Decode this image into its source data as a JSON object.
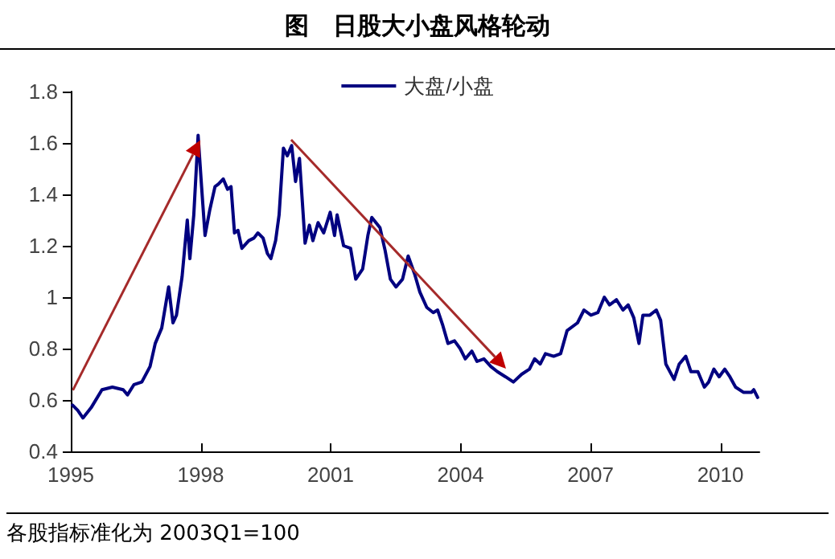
{
  "chart_data": {
    "type": "line",
    "title": "图　日股大小盘风格轮动",
    "annotations": [
      "各股指标准化为 2003Q1=100"
    ],
    "xlim": [
      1995,
      2010.9
    ],
    "xticks": [
      1995,
      1998,
      2001,
      2004,
      2007,
      2010
    ],
    "ylim": [
      0.4,
      1.8
    ],
    "yticks": [
      0.4,
      0.6,
      0.8,
      1,
      1.2,
      1.4,
      1.6,
      1.8
    ],
    "grid": false,
    "legend": "top",
    "marker": "none",
    "line_style": "solid",
    "series": [
      {
        "name": "大盘/小盘",
        "color": "#000080",
        "x": [
          1995.04,
          1995.16,
          1995.28,
          1995.47,
          1995.72,
          1995.96,
          1996.21,
          1996.31,
          1996.46,
          1996.64,
          1996.83,
          1996.95,
          1997.1,
          1997.26,
          1997.36,
          1997.44,
          1997.57,
          1997.69,
          1997.75,
          1997.84,
          1997.94,
          1998.02,
          1998.1,
          1998.21,
          1998.33,
          1998.41,
          1998.52,
          1998.62,
          1998.7,
          1998.78,
          1998.86,
          1998.95,
          1999.11,
          1999.23,
          1999.32,
          1999.44,
          1999.54,
          1999.62,
          1999.73,
          1999.81,
          1999.91,
          2000.0,
          2000.1,
          2000.19,
          2000.28,
          2000.41,
          2000.51,
          2000.59,
          2000.71,
          2000.84,
          2000.99,
          2001.09,
          2001.15,
          2001.3,
          2001.46,
          2001.58,
          2001.74,
          2001.86,
          2001.95,
          2002.14,
          2002.26,
          2002.38,
          2002.51,
          2002.66,
          2002.79,
          2002.94,
          2003.06,
          2003.22,
          2003.37,
          2003.47,
          2003.59,
          2003.71,
          2003.86,
          2003.99,
          2004.11,
          2004.26,
          2004.38,
          2004.54,
          2004.7,
          2004.85,
          2005.04,
          2005.22,
          2005.41,
          2005.59,
          2005.71,
          2005.84,
          2005.96,
          2006.15,
          2006.31,
          2006.46,
          2006.7,
          2006.85,
          2007.01,
          2007.17,
          2007.32,
          2007.44,
          2007.6,
          2007.75,
          2007.87,
          2008.0,
          2008.12,
          2008.21,
          2008.37,
          2008.52,
          2008.62,
          2008.74,
          2008.93,
          2009.05,
          2009.2,
          2009.32,
          2009.48,
          2009.63,
          2009.73,
          2009.85,
          2009.97,
          2010.1,
          2010.22,
          2010.35,
          2010.53,
          2010.72,
          2010.77,
          2010.86
        ],
        "values": [
          0.58,
          0.56,
          0.53,
          0.57,
          0.64,
          0.65,
          0.64,
          0.62,
          0.66,
          0.67,
          0.73,
          0.82,
          0.88,
          1.04,
          0.9,
          0.93,
          1.08,
          1.3,
          1.15,
          1.32,
          1.63,
          1.43,
          1.24,
          1.34,
          1.43,
          1.44,
          1.46,
          1.42,
          1.43,
          1.25,
          1.26,
          1.19,
          1.22,
          1.23,
          1.25,
          1.23,
          1.17,
          1.15,
          1.22,
          1.32,
          1.58,
          1.55,
          1.59,
          1.45,
          1.54,
          1.21,
          1.28,
          1.22,
          1.29,
          1.25,
          1.33,
          1.24,
          1.32,
          1.2,
          1.19,
          1.07,
          1.11,
          1.24,
          1.31,
          1.27,
          1.18,
          1.07,
          1.04,
          1.07,
          1.16,
          1.09,
          1.02,
          0.96,
          0.94,
          0.95,
          0.89,
          0.82,
          0.83,
          0.8,
          0.76,
          0.79,
          0.75,
          0.76,
          0.73,
          0.71,
          0.69,
          0.67,
          0.7,
          0.72,
          0.76,
          0.74,
          0.78,
          0.77,
          0.78,
          0.87,
          0.9,
          0.95,
          0.93,
          0.94,
          1.0,
          0.97,
          0.99,
          0.95,
          0.97,
          0.92,
          0.82,
          0.93,
          0.93,
          0.95,
          0.91,
          0.74,
          0.68,
          0.74,
          0.77,
          0.71,
          0.71,
          0.65,
          0.67,
          0.72,
          0.69,
          0.72,
          0.69,
          0.65,
          0.63,
          0.63,
          0.64,
          0.61
        ]
      }
    ]
  }
}
